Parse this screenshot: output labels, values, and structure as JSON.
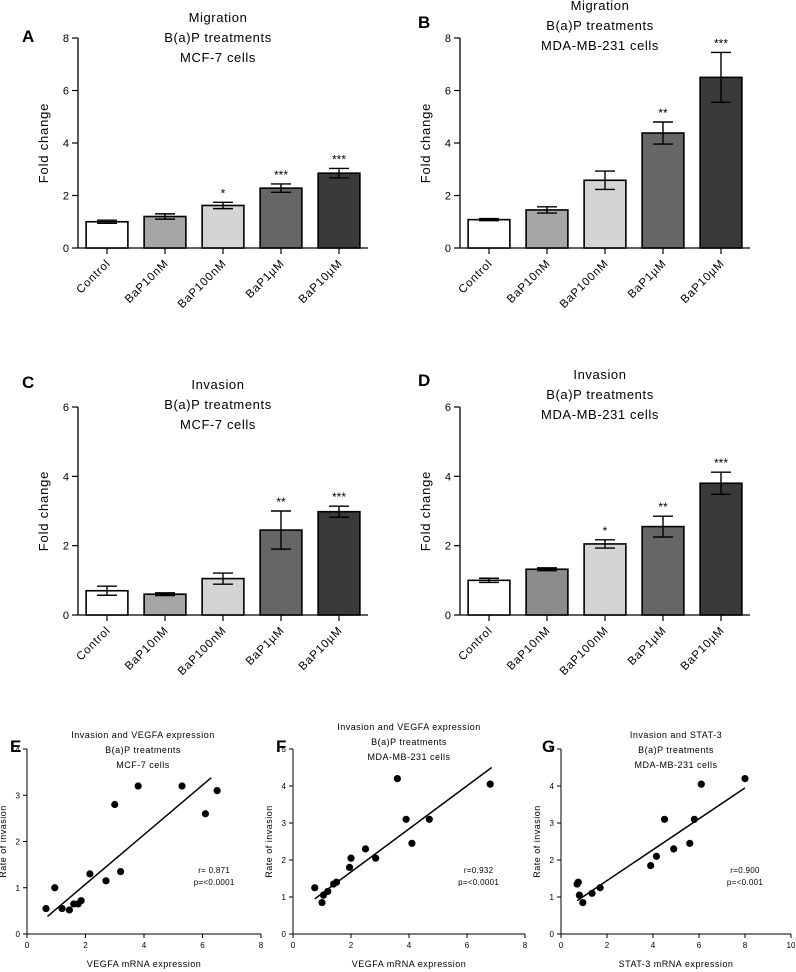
{
  "colors": {
    "axis": "#000000",
    "bar_fills": [
      "#ffffff",
      "#a6a6a6",
      "#d4d4d4",
      "#666666",
      "#3a3a3a"
    ],
    "bar_fills_d": [
      "#ffffff",
      "#8c8c8c",
      "#d4d4d4",
      "#666666",
      "#3a3a3a"
    ],
    "point": "#000000"
  },
  "chart_data": [
    {
      "panel": "A",
      "type": "bar",
      "title": [
        "Migration",
        "B(a)P treatments",
        "MCF-7 cells"
      ],
      "ylabel": "Fold change",
      "xlabel": "",
      "ylim": [
        0,
        8
      ],
      "yticks": [
        0,
        2,
        4,
        6,
        8
      ],
      "categories": [
        "Control",
        "BaP10nM",
        "BaP100nM",
        "BaP1µM",
        "BaP10µM"
      ],
      "values": [
        1.0,
        1.2,
        1.62,
        2.28,
        2.85
      ],
      "errors": [
        0.06,
        0.1,
        0.12,
        0.16,
        0.18
      ],
      "significance": [
        "",
        "",
        "*",
        "***",
        "***"
      ]
    },
    {
      "panel": "B",
      "type": "bar",
      "title": [
        "Migration",
        "B(a)P treatments",
        "MDA-MB-231 cells"
      ],
      "ylabel": "Fold change",
      "xlabel": "",
      "ylim": [
        0,
        8
      ],
      "yticks": [
        0,
        2,
        4,
        6,
        8
      ],
      "categories": [
        "Control",
        "BaP10nM",
        "BaP100nM",
        "BaP1µM",
        "BaP10µM"
      ],
      "values": [
        1.08,
        1.45,
        2.58,
        4.38,
        6.5
      ],
      "errors": [
        0.04,
        0.12,
        0.35,
        0.42,
        0.95
      ],
      "significance": [
        "",
        "",
        "",
        "**",
        "***"
      ]
    },
    {
      "panel": "C",
      "type": "bar",
      "title": [
        "Invasion",
        "B(a)P treatments",
        "MCF-7 cells"
      ],
      "ylabel": "Fold change",
      "xlabel": "",
      "ylim": [
        0,
        6
      ],
      "yticks": [
        0,
        2,
        4,
        6
      ],
      "categories": [
        "Control",
        "BaP10nM",
        "BaP100nM",
        "BaP1µM",
        "BaP10µM"
      ],
      "values": [
        0.7,
        0.6,
        1.05,
        2.45,
        2.98
      ],
      "errors": [
        0.13,
        0.04,
        0.16,
        0.55,
        0.16
      ],
      "significance": [
        "",
        "",
        "",
        "**",
        "***"
      ]
    },
    {
      "panel": "D",
      "type": "bar",
      "title": [
        "Invasion",
        "B(a)P treatments",
        "MDA-MB-231 cells"
      ],
      "ylabel": "Fold change",
      "xlabel": "",
      "ylim": [
        0,
        6
      ],
      "yticks": [
        0,
        2,
        4,
        6
      ],
      "categories": [
        "Control",
        "BaP10nM",
        "BaP100nM",
        "BaP1µM",
        "BaP10µM"
      ],
      "values": [
        1.0,
        1.32,
        2.05,
        2.55,
        3.8
      ],
      "errors": [
        0.06,
        0.04,
        0.12,
        0.3,
        0.32
      ],
      "significance": [
        "",
        "",
        "*",
        "**",
        "***"
      ]
    },
    {
      "panel": "E",
      "type": "scatter",
      "title": [
        "Invasion and VEGFA expression",
        "B(a)P treatments",
        "MCF-7 cells"
      ],
      "xlabel": "VEGFA mRNA expression",
      "ylabel": "Rate of invasion",
      "xlim": [
        0,
        8
      ],
      "ylim": [
        0,
        4
      ],
      "xticks": [
        0,
        2,
        4,
        6,
        8
      ],
      "yticks": [
        0,
        1,
        2,
        3,
        4
      ],
      "x": [
        0.65,
        0.95,
        1.2,
        1.45,
        1.6,
        1.75,
        1.85,
        2.15,
        2.7,
        3.0,
        3.2,
        3.8,
        5.3,
        6.1,
        6.5
      ],
      "y": [
        0.55,
        1.0,
        0.55,
        0.52,
        0.65,
        0.65,
        0.72,
        1.3,
        1.15,
        2.8,
        1.35,
        3.2,
        3.2,
        2.6,
        3.1
      ],
      "fit_line": {
        "x": [
          0.7,
          6.3
        ],
        "y": [
          0.38,
          3.38
        ]
      },
      "stats": [
        "r= 0.871",
        "p=<0.0001"
      ]
    },
    {
      "panel": "F",
      "type": "scatter",
      "title": [
        "Invasion and VEGFA expression",
        "B(a)P treatments",
        "MDA-MB-231 cells"
      ],
      "xlabel": "VEGFA mRNA expression",
      "ylabel": "Rate of invasion",
      "xlim": [
        0,
        8
      ],
      "ylim": [
        0,
        5
      ],
      "xticks": [
        0,
        2,
        4,
        6,
        8
      ],
      "yticks": [
        0,
        1,
        2,
        3,
        4,
        5
      ],
      "x": [
        0.75,
        1.0,
        1.05,
        1.2,
        1.4,
        1.5,
        1.95,
        2.0,
        2.5,
        2.85,
        3.6,
        3.9,
        4.1,
        4.7,
        6.8
      ],
      "y": [
        1.25,
        0.85,
        1.05,
        1.15,
        1.35,
        1.4,
        1.8,
        2.05,
        2.3,
        2.05,
        4.2,
        3.1,
        2.45,
        3.1,
        4.05
      ],
      "fit_line": {
        "x": [
          0.75,
          6.85
        ],
        "y": [
          0.95,
          4.5
        ]
      },
      "stats": [
        "r=0.932",
        "p=<0.0001"
      ]
    },
    {
      "panel": "G",
      "type": "scatter",
      "title": [
        "Invasion and STAT-3",
        "B(a)P treatments",
        "MDA-MB-231 cells"
      ],
      "xlabel": "STAT-3 mRNA expression",
      "ylabel": "Rate of invasion",
      "xlim": [
        0,
        10
      ],
      "ylim": [
        0,
        5
      ],
      "xticks": [
        0,
        2,
        4,
        6,
        8,
        10
      ],
      "yticks": [
        0,
        1,
        2,
        3,
        4,
        5
      ],
      "x": [
        0.7,
        0.75,
        0.8,
        0.95,
        1.35,
        1.7,
        3.9,
        4.15,
        4.5,
        4.9,
        5.6,
        5.8,
        6.1,
        8.0
      ],
      "y": [
        1.35,
        1.4,
        1.05,
        0.85,
        1.1,
        1.25,
        1.85,
        2.1,
        3.1,
        2.3,
        2.45,
        3.1,
        4.05,
        4.2
      ],
      "fit_line": {
        "x": [
          0.7,
          8.0
        ],
        "y": [
          0.9,
          3.95
        ]
      },
      "stats": [
        "r=0.900",
        "p=<0.001"
      ]
    }
  ]
}
